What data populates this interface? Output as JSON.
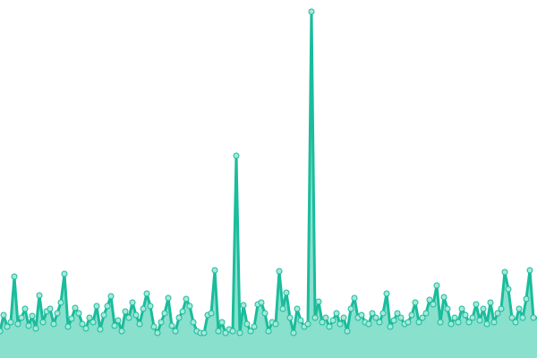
{
  "chart_data": {
    "type": "area",
    "title": "",
    "xlabel": "",
    "ylabel": "",
    "axes_visible": false,
    "grid": false,
    "markers": true,
    "ylim": [
      0,
      400
    ],
    "colors": {
      "line": "#1abc9c",
      "area": "#88e0cd",
      "marker_fill": "#a6e8d9",
      "marker_stroke": "#1abc9c"
    },
    "series": [
      {
        "values": [
          30,
          48,
          35,
          40,
          91,
          38,
          45,
          55,
          36,
          47,
          33,
          70,
          40,
          52,
          55,
          38,
          50,
          62,
          94,
          35,
          44,
          56,
          50,
          38,
          33,
          45,
          40,
          58,
          32,
          48,
          58,
          69,
          36,
          42,
          30,
          52,
          45,
          62,
          48,
          38,
          55,
          72,
          58,
          35,
          28,
          40,
          50,
          67,
          36,
          30,
          45,
          52,
          66,
          58,
          40,
          30,
          28,
          28,
          48,
          50,
          98,
          30,
          40,
          28,
          32,
          30,
          226,
          28,
          59,
          38,
          30,
          35,
          60,
          62,
          50,
          30,
          40,
          38,
          97,
          55,
          73,
          45,
          28,
          55,
          42,
          35,
          38,
          387,
          45,
          63,
          40,
          45,
          35,
          42,
          50,
          38,
          45,
          30,
          55,
          67,
          45,
          48,
          40,
          38,
          50,
          45,
          40,
          50,
          72,
          35,
          42,
          50,
          45,
          38,
          40,
          48,
          62,
          40,
          45,
          50,
          65,
          60,
          81,
          40,
          68,
          55,
          38,
          45,
          40,
          55,
          48,
          40,
          45,
          60,
          42,
          55,
          38,
          62,
          40,
          50,
          55,
          96,
          77,
          45,
          40,
          55,
          45,
          66,
          98,
          45
        ]
      }
    ]
  }
}
